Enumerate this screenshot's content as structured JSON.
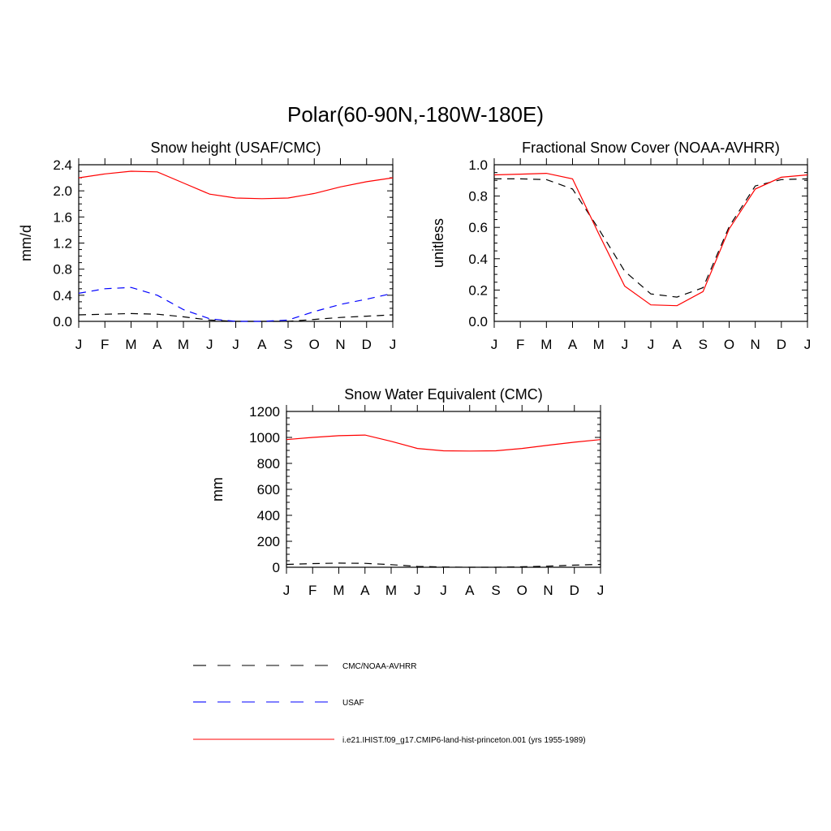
{
  "figure": {
    "title": "Polar(60-90N,-180W-180E)"
  },
  "chart_data": [
    {
      "id": "snow-height",
      "type": "line",
      "title": "Snow height (USAF/CMC)",
      "xlabel": "",
      "ylabel": "mm/d",
      "categories": [
        "J",
        "F",
        "M",
        "A",
        "M",
        "J",
        "J",
        "A",
        "S",
        "O",
        "N",
        "D",
        "J"
      ],
      "ylim": [
        0,
        2.4
      ],
      "yticks": [
        0.0,
        0.4,
        0.8,
        1.2,
        1.6,
        2.0,
        2.4
      ],
      "ytick_labels": [
        "0.0",
        "0.4",
        "0.8",
        "1.2",
        "1.6",
        "2.0",
        "2.4"
      ],
      "grid": false,
      "series": [
        {
          "name": "CMC/NOAA-AVHRR",
          "color": "#000000",
          "dash": "dashed",
          "values": [
            0.1,
            0.11,
            0.12,
            0.11,
            0.07,
            0.02,
            0.0,
            0.0,
            0.0,
            0.03,
            0.06,
            0.08,
            0.1
          ]
        },
        {
          "name": "USAF",
          "color": "#0000ff",
          "dash": "dashed",
          "values": [
            0.43,
            0.5,
            0.52,
            0.4,
            0.18,
            0.04,
            0.0,
            0.0,
            0.02,
            0.15,
            0.26,
            0.34,
            0.43
          ]
        },
        {
          "name": "i.e21.IHIST.f09_g17.CMIP6-land-hist-princeton.001 (yrs 1955-1989)",
          "color": "#ff0000",
          "dash": "solid",
          "values": [
            2.2,
            2.26,
            2.3,
            2.29,
            2.12,
            1.95,
            1.89,
            1.88,
            1.89,
            1.96,
            2.06,
            2.14,
            2.2
          ]
        }
      ]
    },
    {
      "id": "snow-cover",
      "type": "line",
      "title": "Fractional Snow Cover (NOAA-AVHRR)",
      "xlabel": "",
      "ylabel": "unitless",
      "categories": [
        "J",
        "F",
        "M",
        "A",
        "M",
        "J",
        "J",
        "A",
        "S",
        "O",
        "N",
        "D",
        "J"
      ],
      "ylim": [
        0,
        1.0
      ],
      "yticks": [
        0.0,
        0.2,
        0.4,
        0.6,
        0.8,
        1.0
      ],
      "ytick_labels": [
        "0.0",
        "0.2",
        "0.4",
        "0.6",
        "0.8",
        "1.0"
      ],
      "grid": false,
      "series": [
        {
          "name": "CMC/NOAA-AVHRR",
          "color": "#000000",
          "dash": "dashed",
          "values": [
            0.91,
            0.91,
            0.905,
            0.845,
            0.59,
            0.32,
            0.175,
            0.155,
            0.215,
            0.605,
            0.865,
            0.905,
            0.91
          ]
        },
        {
          "name": "i.e21.IHIST.f09_g17.CMIP6-land-hist-princeton.001 (yrs 1955-1989)",
          "color": "#ff0000",
          "dash": "solid",
          "values": [
            0.935,
            0.94,
            0.945,
            0.91,
            0.56,
            0.225,
            0.105,
            0.1,
            0.19,
            0.59,
            0.845,
            0.92,
            0.935
          ]
        }
      ]
    },
    {
      "id": "swe",
      "type": "line",
      "title": "Snow Water Equivalent (CMC)",
      "xlabel": "",
      "ylabel": "mm",
      "categories": [
        "J",
        "F",
        "M",
        "A",
        "M",
        "J",
        "J",
        "A",
        "S",
        "O",
        "N",
        "D",
        "J"
      ],
      "ylim": [
        0,
        1200
      ],
      "yticks": [
        0,
        200,
        400,
        600,
        800,
        1000,
        1200
      ],
      "ytick_labels": [
        "0",
        "200",
        "400",
        "600",
        "800",
        "1000",
        "1200"
      ],
      "grid": false,
      "series": [
        {
          "name": "CMC/NOAA-AVHRR",
          "color": "#000000",
          "dash": "dashed",
          "values": [
            22,
            28,
            32,
            30,
            20,
            7,
            2,
            0,
            0,
            4,
            9,
            16,
            22
          ]
        },
        {
          "name": "i.e21.IHIST.f09_g17.CMIP6-land-hist-princeton.001 (yrs 1955-1989)",
          "color": "#ff0000",
          "dash": "solid",
          "values": [
            983,
            1000,
            1013,
            1018,
            970,
            915,
            897,
            895,
            897,
            915,
            940,
            963,
            983
          ]
        }
      ]
    }
  ],
  "legend": {
    "placement": "bottom",
    "entries": [
      {
        "label": "CMC/NOAA-AVHRR",
        "color": "#000000",
        "dash": "dashed"
      },
      {
        "label": "USAF",
        "color": "#0000ff",
        "dash": "dashed"
      },
      {
        "label": "i.e21.IHIST.f09_g17.CMIP6-land-hist-princeton.001 (yrs 1955-1989)",
        "color": "#ff0000",
        "dash": "solid"
      }
    ]
  }
}
